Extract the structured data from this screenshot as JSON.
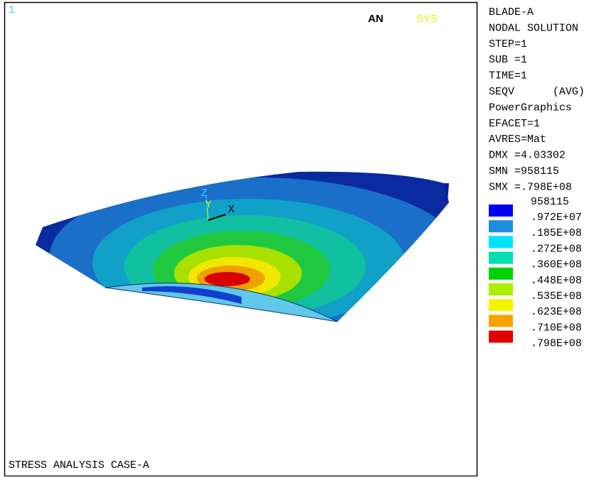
{
  "window_number": "1",
  "logo": [
    "AN",
    "SYS"
  ],
  "info_lines": [
    "BLADE-A",
    "NODAL SOLUTION",
    "STEP=1",
    "SUB =1",
    "TIME=1",
    "SEQV      (AVG)",
    "PowerGraphics",
    "EFACET=1",
    "AVRES=Mat",
    "DMX =4.03302",
    "SMN =958115",
    "SMX =.798E+08"
  ],
  "contour_legend": {
    "min_label": "958115",
    "levels": [
      {
        "label": ".972E+07",
        "color": "#0000f0"
      },
      {
        "label": ".185E+08",
        "color": "#1e8fe0"
      },
      {
        "label": ".272E+08",
        "color": "#00e4ff"
      },
      {
        "label": ".360E+08",
        "color": "#00e0b0"
      },
      {
        "label": ".448E+08",
        "color": "#00d400"
      },
      {
        "label": ".535E+08",
        "color": "#a8f000"
      },
      {
        "label": ".623E+08",
        "color": "#f4f400"
      },
      {
        "label": ".710E+08",
        "color": "#f8a400"
      },
      {
        "label": ".798E+08",
        "color": "#e40000"
      }
    ]
  },
  "triad": {
    "z": "Z",
    "y": "Y",
    "x": "X"
  },
  "footer": "STRESS ANALYSIS CASE-A"
}
